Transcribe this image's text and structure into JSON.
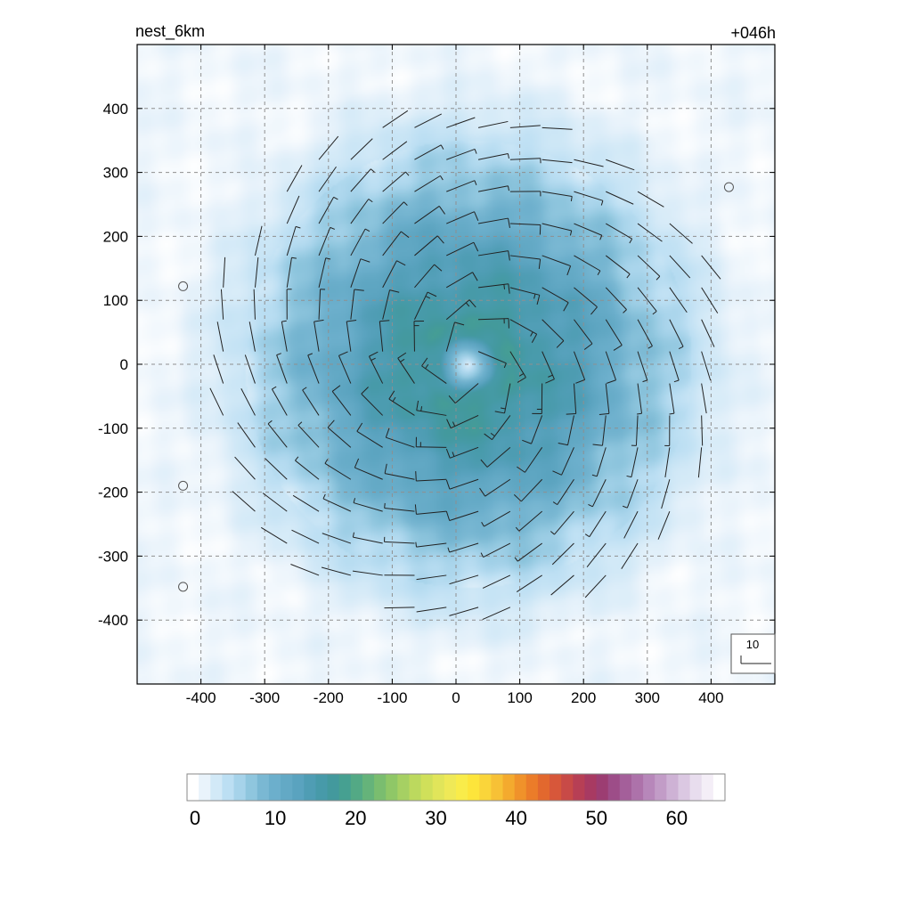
{
  "chart_data": {
    "type": "contour_wind_barbs",
    "title_left": "nest_6km",
    "title_right": "+046h",
    "xlim": [
      -500,
      500
    ],
    "ylim": [
      -500,
      500
    ],
    "x_ticks": [
      -400,
      -300,
      -200,
      -100,
      0,
      100,
      200,
      300,
      400
    ],
    "y_ticks": [
      -400,
      -300,
      -200,
      -100,
      0,
      100,
      200,
      300,
      400
    ],
    "x_tick_labels": [
      "-400",
      "-300",
      "-200",
      "-100",
      "0",
      "100",
      "200",
      "300",
      "400"
    ],
    "y_tick_labels": [
      "-400",
      "-300",
      "-200",
      "-100",
      "0",
      "100",
      "200",
      "300",
      "400"
    ],
    "grid": true,
    "grid_style": "dashed",
    "field_description": "azimuthally symmetric wind-speed field centered near (20, 0)",
    "center": [
      20,
      0
    ],
    "field_profile": {
      "radius": [
        0,
        20,
        45,
        70,
        120,
        180,
        230,
        280,
        340,
        400,
        460
      ],
      "speed": [
        1,
        7,
        16,
        17.5,
        15.5,
        13,
        10.5,
        7.5,
        4.5,
        2.5,
        1
      ]
    },
    "barb_spacing": 50,
    "barb_reference": {
      "label": "10",
      "value": 10
    },
    "calm_markers": [
      [
        428,
        277
      ],
      [
        -428,
        122
      ],
      [
        -428,
        -190
      ],
      [
        -428,
        -348
      ]
    ],
    "colorbar": {
      "min": 0,
      "max": 65,
      "tick_values": [
        0,
        10,
        20,
        30,
        40,
        50,
        60
      ],
      "tick_labels": [
        "0",
        "10",
        "20",
        "30",
        "40",
        "50",
        "60"
      ],
      "colors": [
        "#ffffff",
        "#e9f3fb",
        "#d2e9f7",
        "#bcdff3",
        "#a6d3ea",
        "#8fc6de",
        "#7ab8d3",
        "#6cafcc",
        "#63a9c5",
        "#5aa3bf",
        "#4f9db4",
        "#479aa9",
        "#43999d",
        "#46a091",
        "#53a985",
        "#65b37a",
        "#7abd6f",
        "#8fc767",
        "#a6d063",
        "#bcd95e",
        "#d0e05a",
        "#e1e55a",
        "#efe957",
        "#f9ec4a",
        "#fde53b",
        "#fad53a",
        "#f7c136",
        "#f4aa2e",
        "#f0922a",
        "#eb7c29",
        "#e2682e",
        "#d7573a",
        "#c84a47",
        "#b73f55",
        "#a83a62",
        "#9c3d72",
        "#9d4d88",
        "#a45f9a",
        "#ad72aa",
        "#b787ba",
        "#c29cc7",
        "#ceb2d5",
        "#dbc8e2",
        "#e8ddee",
        "#f4eef7",
        "#ffffff"
      ]
    }
  }
}
